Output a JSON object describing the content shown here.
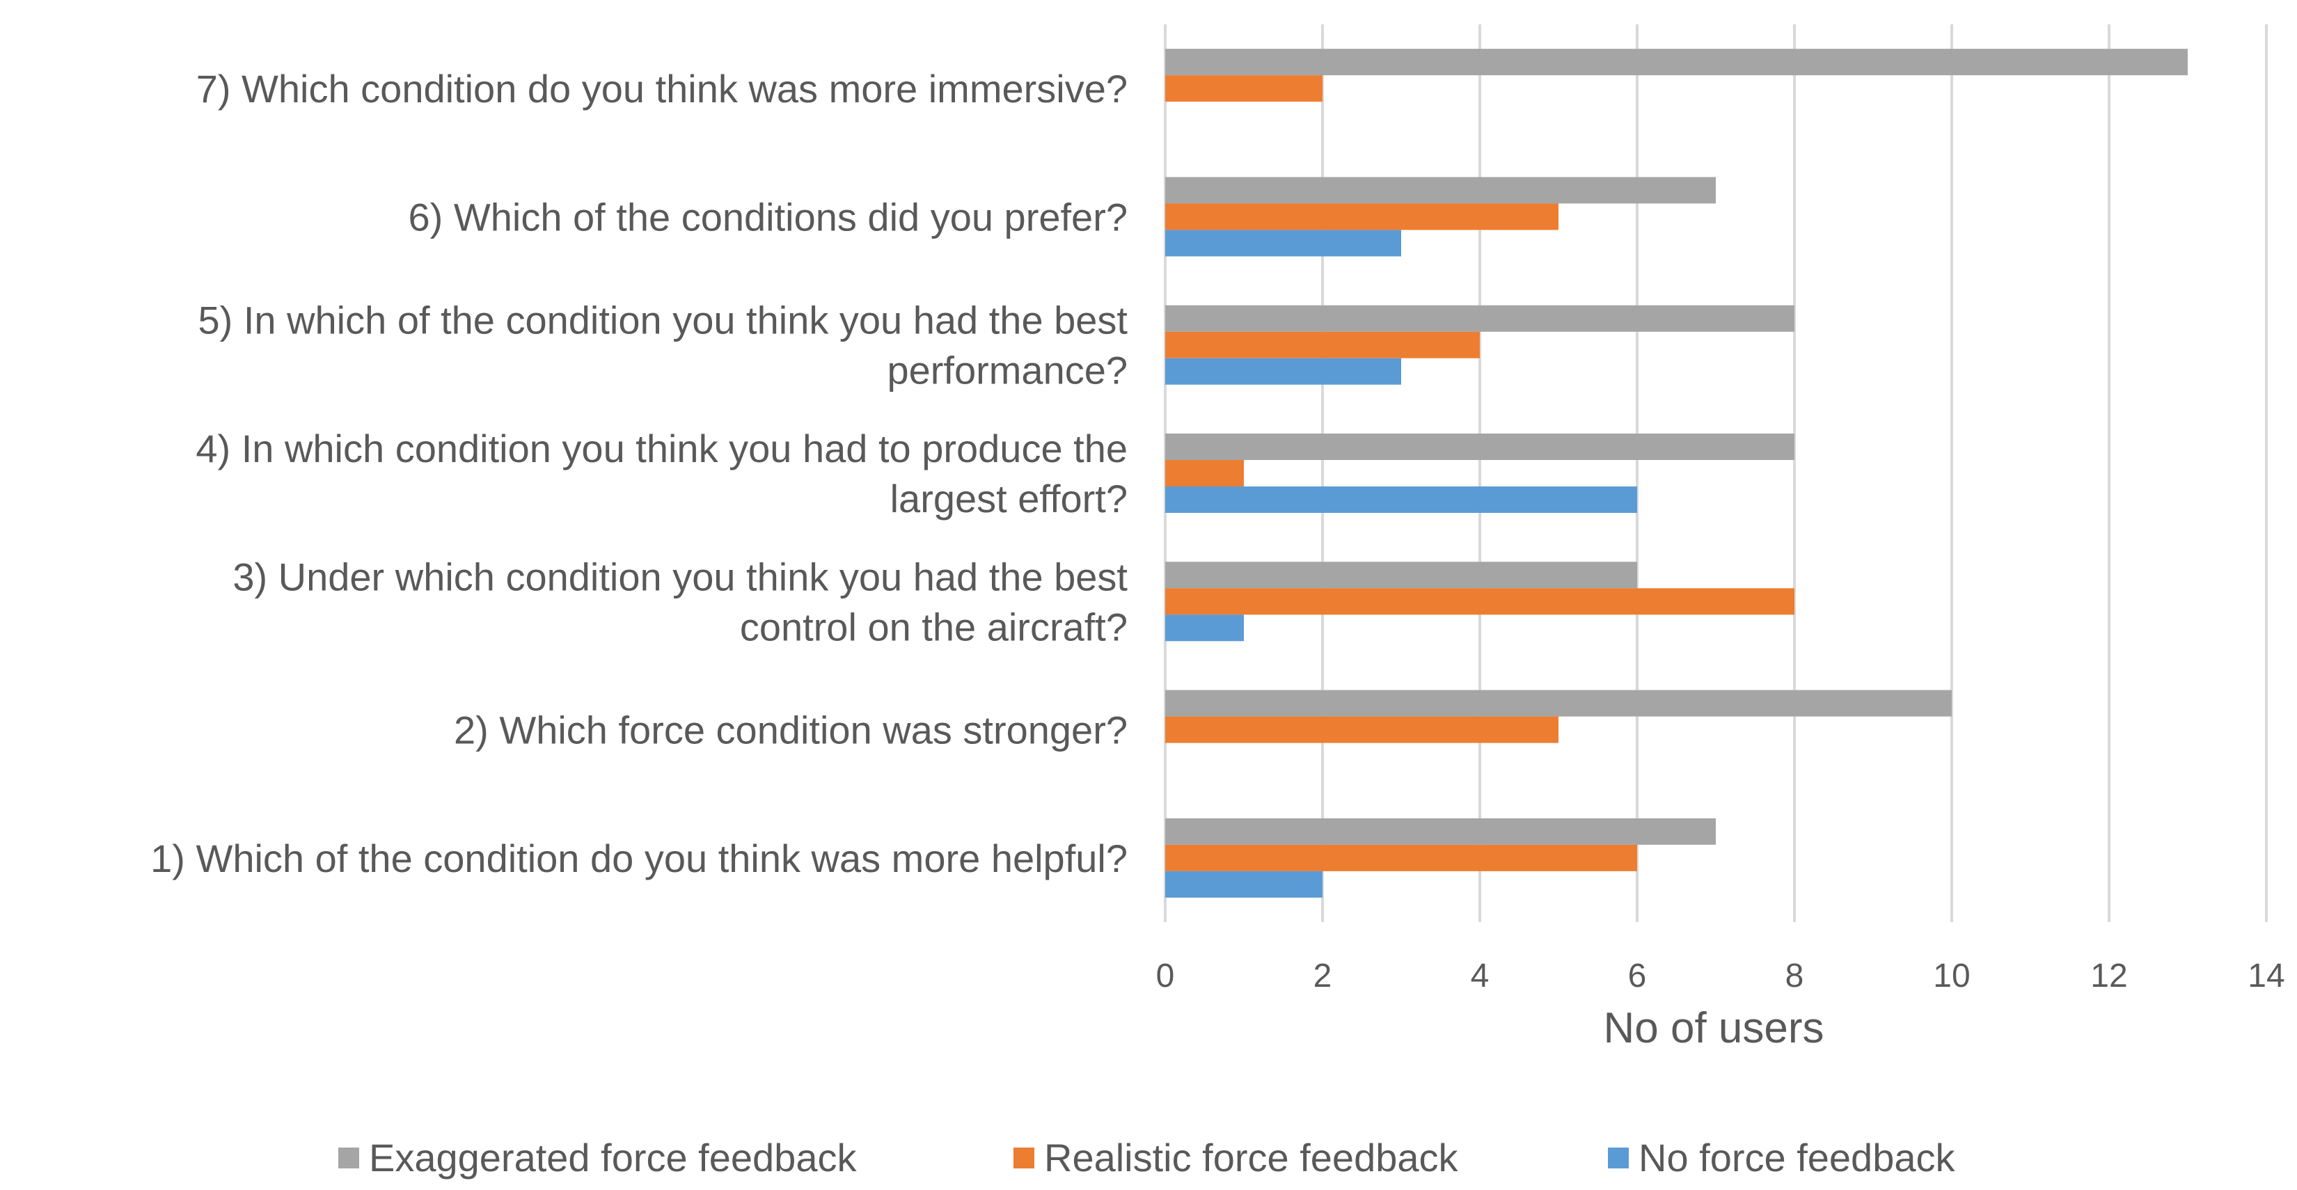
{
  "chart_data": {
    "type": "bar",
    "orientation": "horizontal",
    "title": "",
    "xlabel": "No of users",
    "ylabel": "",
    "xlim": [
      0,
      14
    ],
    "xticks": [
      0,
      2,
      4,
      6,
      8,
      10,
      12,
      14
    ],
    "grid": true,
    "legend_position": "bottom",
    "categories": [
      "1) Which of the condition do you think was more helpful?",
      "2) Which force condition was stronger?",
      "3) Under which condition you think you had the best control on the aircraft?",
      "4) In which condition you think you had to produce the largest effort?",
      "5) In which of the condition you think you had the best performance?",
      "6) Which of the conditions did you prefer?",
      "7) Which condition do you think was more immersive?"
    ],
    "category_lines": [
      [
        "1) Which of the condition do you think was more helpful?"
      ],
      [
        "2) Which force condition was stronger?"
      ],
      [
        "3) Under which condition you think you had the best",
        "control on the aircraft?"
      ],
      [
        "4) In which condition you think you had to produce the",
        "largest effort?"
      ],
      [
        "5) In which of the condition you think you had the best",
        "performance?"
      ],
      [
        "6) Which of the conditions did you prefer?"
      ],
      [
        "7) Which condition do you think was more immersive?"
      ]
    ],
    "series": [
      {
        "name": "Exaggerated force feedback",
        "color": "#a5a5a5",
        "values": [
          7,
          10,
          6,
          8,
          8,
          7,
          13
        ]
      },
      {
        "name": "Realistic force feedback",
        "color": "#ed7d31",
        "values": [
          6,
          5,
          8,
          1,
          4,
          5,
          2
        ]
      },
      {
        "name": "No force feedback",
        "color": "#5b9bd5",
        "values": [
          2,
          0,
          1,
          6,
          3,
          3,
          0
        ]
      }
    ]
  }
}
